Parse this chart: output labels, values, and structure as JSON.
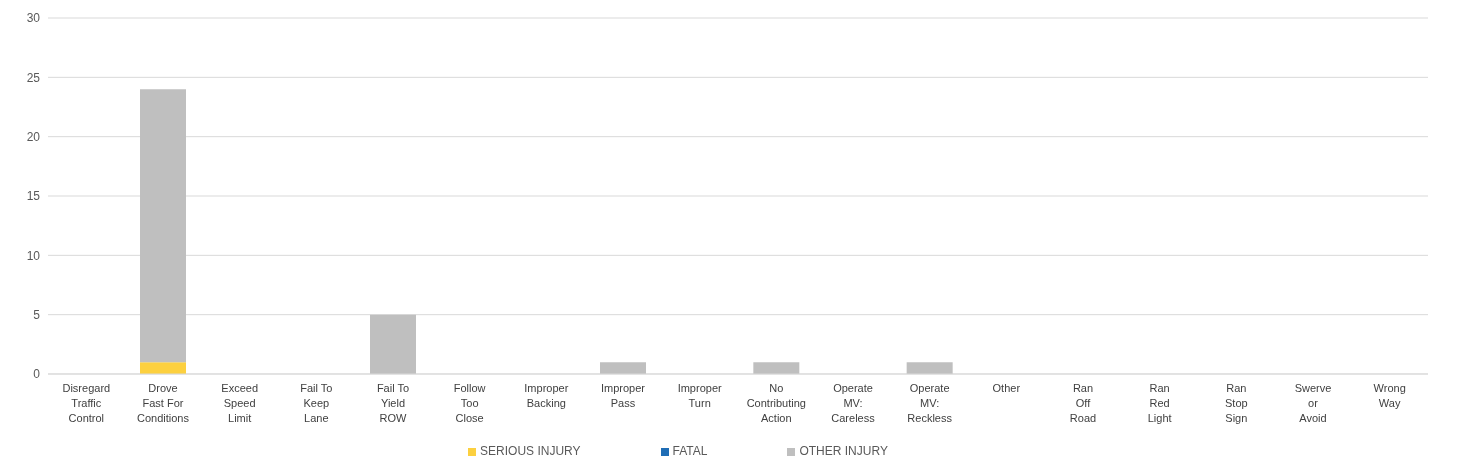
{
  "chart_data": {
    "type": "bar",
    "stacked": true,
    "categories": [
      "Disregard\nTraffic\nControl",
      "Drove\nFast For\nConditions",
      "Exceed\nSpeed\nLimit",
      "Fail To\nKeep\nLane",
      "Fail To\nYield\nROW",
      "Follow\nToo\nClose",
      "Improper\nBacking",
      "Improper\nPass",
      "Improper\nTurn",
      "No\nContributing\nAction",
      "Operate\nMV:\nCareless",
      "Operate\nMV:\nReckless",
      "Other",
      "Ran\nOff\nRoad",
      "Ran\nRed\nLight",
      "Ran\nStop\nSign",
      "Swerve\nor\nAvoid",
      "Wrong\nWay"
    ],
    "series": [
      {
        "name": "SERIOUS INJURY",
        "color": "#fcd03f",
        "values": [
          0,
          1,
          0,
          0,
          0,
          0,
          0,
          0,
          0,
          0,
          0,
          0,
          0,
          0,
          0,
          0,
          0,
          0
        ]
      },
      {
        "name": "FATAL",
        "color": "#1f6db5",
        "values": [
          0,
          0,
          0,
          0,
          0,
          0,
          0,
          0,
          0,
          0,
          0,
          0,
          0,
          0,
          0,
          0,
          0,
          0
        ]
      },
      {
        "name": "OTHER INJURY",
        "color": "#bfbfbf",
        "values": [
          0,
          23,
          0,
          0,
          5,
          0,
          0,
          1,
          0,
          1,
          0,
          1,
          0,
          0,
          0,
          0,
          0,
          0
        ]
      }
    ],
    "ylim": [
      0,
      30
    ],
    "yticks": [
      0,
      5,
      10,
      15,
      20,
      25,
      30
    ],
    "grid": "y",
    "legend": "bottom"
  }
}
